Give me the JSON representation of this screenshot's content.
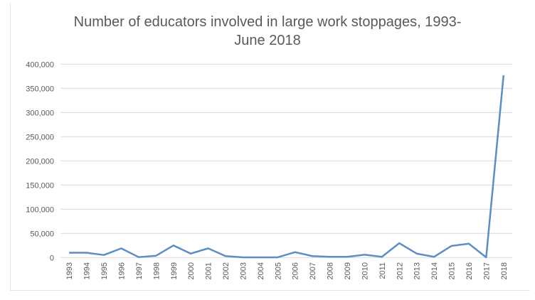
{
  "chart_data": {
    "type": "line",
    "title_lines": [
      "Number of educators involved in large work stoppages, 1993-",
      "June 2018"
    ],
    "xlabel": "",
    "ylabel": "",
    "categories": [
      "1993",
      "1994",
      "1995",
      "1996",
      "1997",
      "1998",
      "1999",
      "2000",
      "2001",
      "2002",
      "2003",
      "2004",
      "2005",
      "2006",
      "2007",
      "2008",
      "2009",
      "2010",
      "2011",
      "2012",
      "2013",
      "2014",
      "2015",
      "2016",
      "2017",
      "2018"
    ],
    "values": [
      10000,
      10000,
      5300,
      19000,
      900,
      3800,
      25000,
      8200,
      19000,
      3000,
      500,
      500,
      500,
      11200,
      3000,
      1500,
      1500,
      5900,
      1500,
      29800,
      8200,
      1500,
      24000,
      28800,
      500,
      377000
    ],
    "ylim": [
      0,
      400000
    ],
    "yticks": [
      "0",
      "50,000",
      "100,000",
      "150,000",
      "200,000",
      "250,000",
      "300,000",
      "350,000",
      "400,000"
    ],
    "grid": true,
    "legend": "none",
    "line_color": "#5b8ec4",
    "grid_color": "#d9d9d9"
  }
}
